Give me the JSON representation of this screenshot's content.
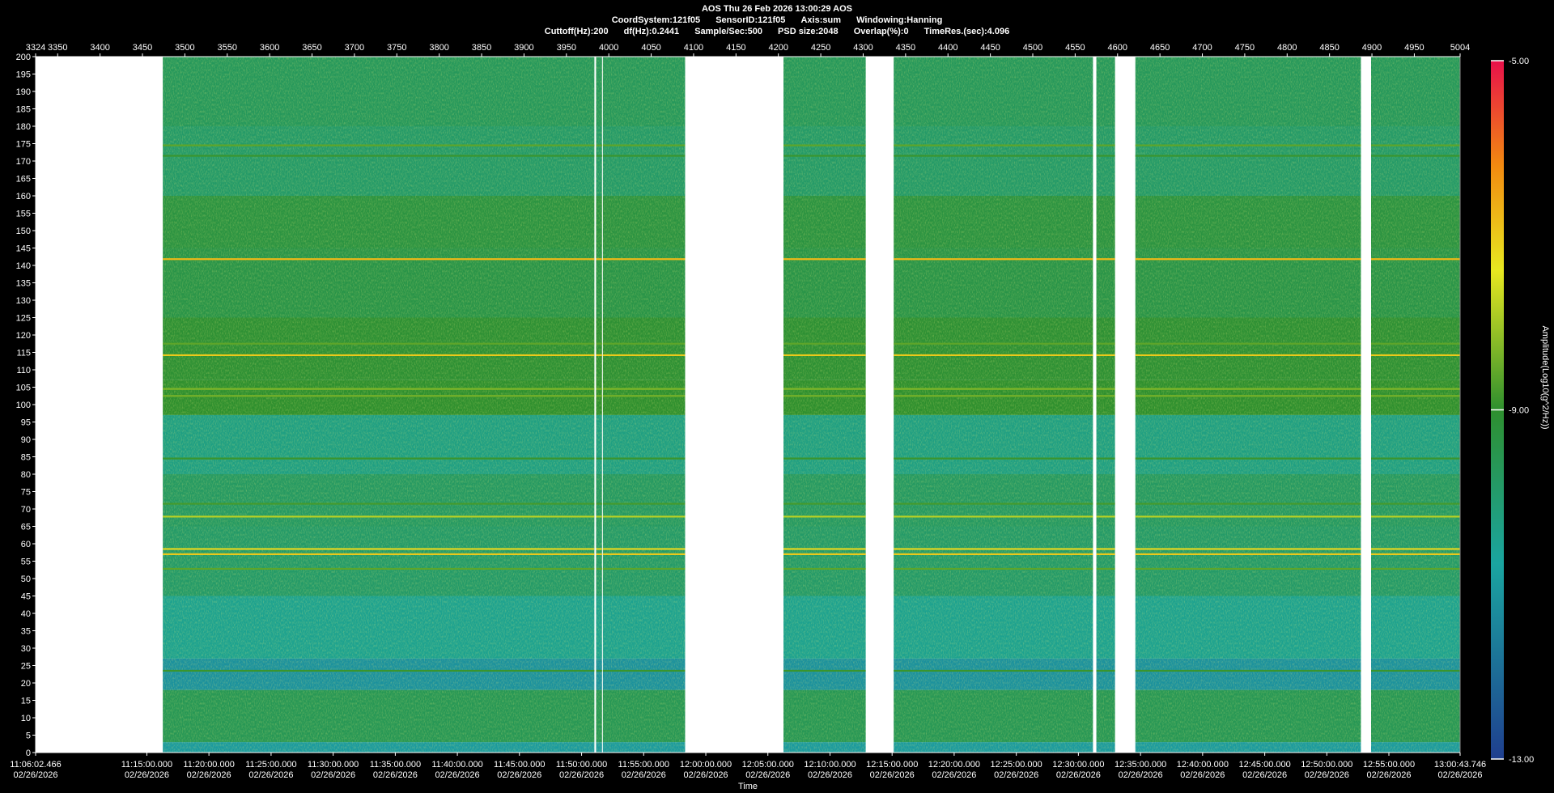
{
  "header": {
    "line1": "AOS  Thu 26 Feb 2026 13:00:29  AOS",
    "line2": [
      "CoordSystem:121f05",
      "SensorID:121f05",
      "Axis:sum",
      "Windowing:Hanning"
    ],
    "line3": [
      "Cuttoff(Hz):200",
      "df(Hz):0.2441",
      "Sample/Sec:500",
      "PSD size:2048",
      "Overlap(%):0",
      "TimeRes.(sec):4.096"
    ]
  },
  "chart_data": {
    "type": "heatmap",
    "title": "AOS  Thu 26 Feb 2026 13:00:29  AOS",
    "xlabel": "Time",
    "ylabel": "",
    "colorbar_label": "Amplitude(Log10(g^2/Hz))",
    "colorbar_ticks": [
      "-5.00",
      "-9.00",
      "-13.00"
    ],
    "colorbar_range": [
      -13,
      -5
    ],
    "colors": {
      "low": "#1f3f8f",
      "mid_low": "#1aa5a0",
      "mid": "#2e8f2e",
      "mid_high": "#e8e820",
      "high": "#f28a10",
      "max": "#e8104a"
    },
    "ylim": [
      0,
      200
    ],
    "y_ticks": [
      0,
      5,
      10,
      15,
      20,
      25,
      30,
      35,
      40,
      45,
      50,
      55,
      60,
      65,
      70,
      75,
      80,
      85,
      90,
      95,
      100,
      105,
      110,
      115,
      120,
      125,
      130,
      135,
      140,
      145,
      150,
      155,
      160,
      165,
      170,
      175,
      180,
      185,
      190,
      195,
      200
    ],
    "xlim_index": [
      3324,
      5004
    ],
    "top_ticks": [
      "3324",
      "3350",
      "3400",
      "3450",
      "3500",
      "3550",
      "3600",
      "3650",
      "3700",
      "3750",
      "3800",
      "3850",
      "3900",
      "3950",
      "4000",
      "4050",
      "4100",
      "4150",
      "4200",
      "4250",
      "4300",
      "4350",
      "4400",
      "4450",
      "4500",
      "4550",
      "4600",
      "4650",
      "4700",
      "4750",
      "4800",
      "4850",
      "4900",
      "4950",
      "5004"
    ],
    "top_tick_values": [
      3324,
      3350,
      3400,
      3450,
      3500,
      3550,
      3600,
      3650,
      3700,
      3750,
      3800,
      3850,
      3900,
      3950,
      4000,
      4050,
      4100,
      4150,
      4200,
      4250,
      4300,
      4350,
      4400,
      4450,
      4500,
      4550,
      4600,
      4650,
      4700,
      4750,
      4800,
      4850,
      4900,
      4950,
      5004
    ],
    "time_ticks": [
      {
        "time": "11:06:02.466",
        "date": "02/26/2026",
        "index": 3324
      },
      {
        "time": "11:15:00.000",
        "date": "02/26/2026",
        "index": 3455.2
      },
      {
        "time": "11:20:00.000",
        "date": "02/26/2026",
        "index": 3528.4
      },
      {
        "time": "11:25:00.000",
        "date": "02/26/2026",
        "index": 3601.7
      },
      {
        "time": "11:30:00.000",
        "date": "02/26/2026",
        "index": 3674.9
      },
      {
        "time": "11:35:00.000",
        "date": "02/26/2026",
        "index": 3748.2
      },
      {
        "time": "11:40:00.000",
        "date": "02/26/2026",
        "index": 3821.4
      },
      {
        "time": "11:45:00.000",
        "date": "02/26/2026",
        "index": 3894.6
      },
      {
        "time": "11:50:00.000",
        "date": "02/26/2026",
        "index": 3967.9
      },
      {
        "time": "11:55:00.000",
        "date": "02/26/2026",
        "index": 4041.1
      },
      {
        "time": "12:00:00.000",
        "date": "02/26/2026",
        "index": 4114.4
      },
      {
        "time": "12:05:00.000",
        "date": "02/26/2026",
        "index": 4187.6
      },
      {
        "time": "12:10:00.000",
        "date": "02/26/2026",
        "index": 4260.9
      },
      {
        "time": "12:15:00.000",
        "date": "02/26/2026",
        "index": 4334.1
      },
      {
        "time": "12:20:00.000",
        "date": "02/26/2026",
        "index": 4407.3
      },
      {
        "time": "12:25:00.000",
        "date": "02/26/2026",
        "index": 4480.6
      },
      {
        "time": "12:30:00.000",
        "date": "02/26/2026",
        "index": 4553.8
      },
      {
        "time": "12:35:00.000",
        "date": "02/26/2026",
        "index": 4627.1
      },
      {
        "time": "12:40:00.000",
        "date": "02/26/2026",
        "index": 4700.3
      },
      {
        "time": "12:45:00.000",
        "date": "02/26/2026",
        "index": 4773.6
      },
      {
        "time": "12:50:00.000",
        "date": "02/26/2026",
        "index": 4846.8
      },
      {
        "time": "12:55:00.000",
        "date": "02/26/2026",
        "index": 4920.0
      },
      {
        "time": "13:00:43.746",
        "date": "02/26/2026",
        "index": 5004
      }
    ],
    "data_segments": [
      [
        3474,
        3983
      ],
      [
        3985,
        3992
      ],
      [
        3993,
        4090
      ],
      [
        4206,
        4303
      ],
      [
        4336,
        4571
      ],
      [
        4575,
        4597
      ],
      [
        4621,
        4887
      ],
      [
        4899,
        5004
      ]
    ],
    "band_profile": [
      {
        "f": [
          0,
          3
        ],
        "level": -11.0
      },
      {
        "f": [
          3,
          18
        ],
        "level": -9.6
      },
      {
        "f": [
          18,
          27
        ],
        "level": -11.2
      },
      {
        "f": [
          27,
          45
        ],
        "level": -10.5
      },
      {
        "f": [
          45,
          65
        ],
        "level": -9.9
      },
      {
        "f": [
          65,
          80
        ],
        "level": -9.8
      },
      {
        "f": [
          80,
          97
        ],
        "level": -10.3
      },
      {
        "f": [
          97,
          107
        ],
        "level": -9.0
      },
      {
        "f": [
          107,
          125
        ],
        "level": -9.1
      },
      {
        "f": [
          125,
          145
        ],
        "level": -9.4
      },
      {
        "f": [
          145,
          160
        ],
        "level": -9.3
      },
      {
        "f": [
          160,
          180
        ],
        "level": -9.9
      },
      {
        "f": [
          180,
          200
        ],
        "level": -9.7
      }
    ],
    "tonal_lines": [
      {
        "f": 23.5,
        "level": -8.9
      },
      {
        "f": 52.8,
        "level": -8.6
      },
      {
        "f": 57.0,
        "level": -7.0
      },
      {
        "f": 58.5,
        "level": -7.2
      },
      {
        "f": 67.8,
        "level": -7.8
      },
      {
        "f": 71.5,
        "level": -8.8
      },
      {
        "f": 84.5,
        "level": -8.9
      },
      {
        "f": 102.5,
        "level": -8.4
      },
      {
        "f": 104.5,
        "level": -8.3
      },
      {
        "f": 114.2,
        "level": -7.0
      },
      {
        "f": 117.5,
        "level": -8.6
      },
      {
        "f": 141.8,
        "level": -6.8
      },
      {
        "f": 171.5,
        "level": -8.9
      },
      {
        "f": 174.5,
        "level": -8.6
      }
    ]
  }
}
